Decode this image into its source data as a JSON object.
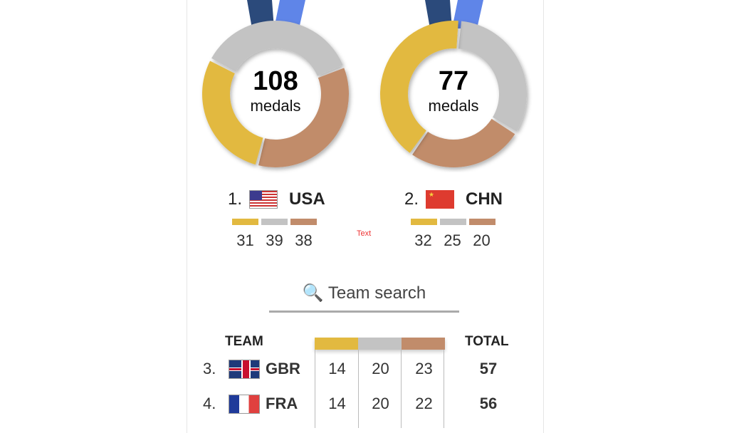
{
  "colors": {
    "gold": "#e2b940",
    "silver": "#c3c3c3",
    "bronze": "#c18c6b",
    "ribbon_dark": "#2b4a7b",
    "ribbon_light": "#5f85e8"
  },
  "leaders": [
    {
      "rank": "1.",
      "code": "USA",
      "total": "108",
      "unit": "medals",
      "gold": 31,
      "silver": 39,
      "bronze": 38,
      "flag": "us-flag"
    },
    {
      "rank": "2.",
      "code": "CHN",
      "total": "77",
      "unit": "medals",
      "gold": 32,
      "silver": 25,
      "bronze": 20,
      "flag": "china-flag"
    }
  ],
  "placeholder_text": "Text",
  "search": {
    "icon": "magnifier-icon",
    "label": "Team search"
  },
  "table": {
    "team_header": "TEAM",
    "total_header": "TOTAL",
    "rows": [
      {
        "rank": "3.",
        "code": "GBR",
        "gold": "14",
        "silver": "20",
        "bronze": "23",
        "total": "57",
        "flag": "uk-flag"
      },
      {
        "rank": "4.",
        "code": "FRA",
        "gold": "14",
        "silver": "20",
        "bronze": "22",
        "total": "56",
        "flag": "france-flag"
      }
    ]
  }
}
